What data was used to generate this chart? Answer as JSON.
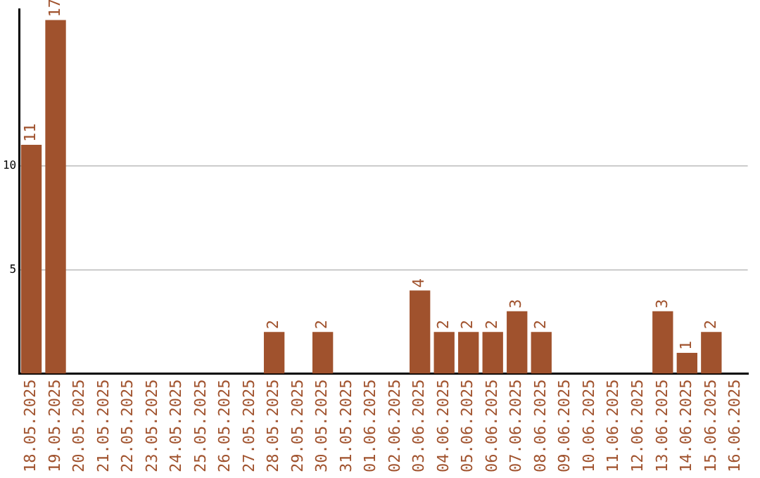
{
  "chart_data": {
    "type": "bar",
    "categories": [
      "18.05.2025",
      "19.05.2025",
      "20.05.2025",
      "21.05.2025",
      "22.05.2025",
      "23.05.2025",
      "24.05.2025",
      "25.05.2025",
      "26.05.2025",
      "27.05.2025",
      "28.05.2025",
      "29.05.2025",
      "30.05.2025",
      "31.05.2025",
      "01.06.2025",
      "02.06.2025",
      "03.06.2025",
      "04.06.2025",
      "05.06.2025",
      "06.06.2025",
      "07.06.2025",
      "08.06.2025",
      "09.06.2025",
      "10.06.2025",
      "11.06.2025",
      "12.06.2025",
      "13.06.2025",
      "14.06.2025",
      "15.06.2025",
      "16.06.2025"
    ],
    "values": [
      11,
      17,
      0,
      0,
      0,
      0,
      0,
      0,
      0,
      0,
      2,
      0,
      2,
      0,
      0,
      0,
      4,
      2,
      2,
      2,
      3,
      2,
      0,
      0,
      0,
      0,
      3,
      1,
      2,
      0
    ],
    "value_labels": [
      "11",
      "17",
      null,
      null,
      null,
      null,
      null,
      null,
      null,
      null,
      "2",
      null,
      "2",
      null,
      null,
      null,
      "4",
      "2",
      "2",
      "2",
      "3",
      "2",
      null,
      null,
      null,
      null,
      "3",
      "1",
      "2",
      null
    ],
    "color": "#a0522d",
    "ylim": [
      0,
      17.5
    ],
    "yticks": [
      5,
      10
    ],
    "grid": "y"
  }
}
